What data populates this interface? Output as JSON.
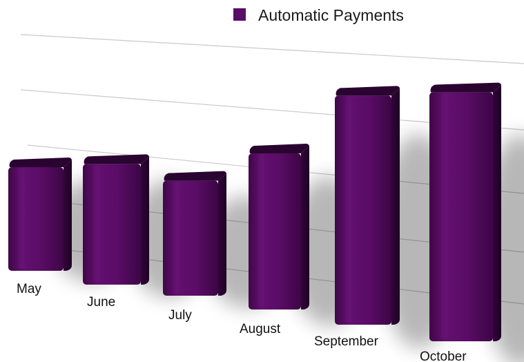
{
  "chart_data": {
    "type": "bar",
    "categories": [
      "May",
      "June",
      "July",
      "August",
      "September",
      "October"
    ],
    "series": [
      {
        "name": "Automatic Payments",
        "values": [
          2.0,
          2.3,
          2.2,
          3.0,
          4.8,
          5.2
        ]
      }
    ],
    "legend": {
      "position": "top-right",
      "label": "Automatic Payments"
    },
    "grid": true,
    "style": "3d-perspective"
  },
  "colors": {
    "bar_front": "#5e0c6a",
    "bar_side": "#3a0642",
    "bar_top": "#2a0430",
    "legend_swatch": "#5a0d66",
    "gridline": "#c9c9c9"
  }
}
